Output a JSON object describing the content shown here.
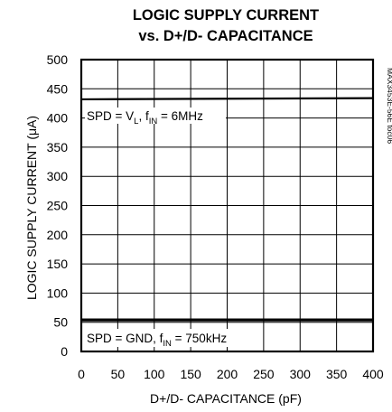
{
  "chart_data": {
    "type": "line",
    "title_line1": "LOGIC SUPPLY CURRENT",
    "title_line2": "vs. D+/D- CAPACITANCE",
    "xlabel": "D+/D- CAPACITANCE (pF)",
    "ylabel": "LOGIC SUPPLY CURRENT (μA)",
    "xlim": [
      0,
      400
    ],
    "ylim": [
      0,
      500
    ],
    "x_ticks": [
      "0",
      "50",
      "100",
      "150",
      "200",
      "250",
      "300",
      "350",
      "400"
    ],
    "y_ticks": [
      "0",
      "50",
      "100",
      "150",
      "200",
      "250",
      "300",
      "350",
      "400",
      "450",
      "500"
    ],
    "grid": true,
    "file_id": "MAX3453E-56E toc06",
    "series": [
      {
        "label_main": "SPD = V",
        "label_sub1": "L",
        "label_mid": ", f",
        "label_sub2": "IN",
        "label_end": " = 6MHz",
        "x": [
          0,
          400
        ],
        "y": [
          432,
          434
        ]
      },
      {
        "label_main": "SPD = GND, f",
        "label_sub1": "IN",
        "label_end": " = 750kHz",
        "x": [
          0,
          400
        ],
        "y": [
          54,
          54
        ]
      }
    ]
  }
}
